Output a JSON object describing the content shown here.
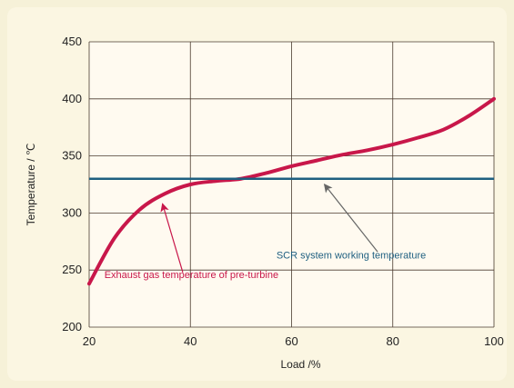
{
  "chart_data": {
    "type": "line",
    "xlabel": "Load /%",
    "ylabel": "Temperature / ℃",
    "xlim": [
      20,
      100
    ],
    "ylim": [
      200,
      450
    ],
    "x_ticks": [
      20,
      40,
      60,
      80,
      100
    ],
    "y_ticks": [
      200,
      250,
      300,
      350,
      400,
      450
    ],
    "grid": true,
    "series": [
      {
        "name": "Exhaust gas temperature of pre-turbine",
        "color": "#c8174a",
        "x": [
          20,
          25,
          30,
          35,
          40,
          45,
          50,
          55,
          60,
          65,
          70,
          75,
          80,
          85,
          90,
          95,
          100
        ],
        "y": [
          238,
          278,
          303,
          317,
          325,
          328,
          330,
          335,
          341,
          346,
          351,
          355,
          360,
          366,
          373,
          385,
          400
        ]
      },
      {
        "name": "SCR system working temperature",
        "color": "#1e5f80",
        "x": [
          20,
          100
        ],
        "y": [
          330,
          330
        ]
      }
    ],
    "annotations": [
      {
        "text": "Exhaust gas temperature of pre-turbine",
        "color": "#c8174a",
        "arrow_color": "#c8174a",
        "text_x": 23,
        "text_y": 243,
        "arrow_from_x": 38.5,
        "arrow_from_y": 248,
        "arrow_to_x": 34.5,
        "arrow_to_y": 308
      },
      {
        "text": "SCR system working temperature",
        "color": "#1e5f80",
        "arrow_color": "#666666",
        "text_x": 57,
        "text_y": 260,
        "arrow_from_x": 77,
        "arrow_from_y": 266,
        "arrow_to_x": 66.5,
        "arrow_to_y": 325
      }
    ]
  }
}
